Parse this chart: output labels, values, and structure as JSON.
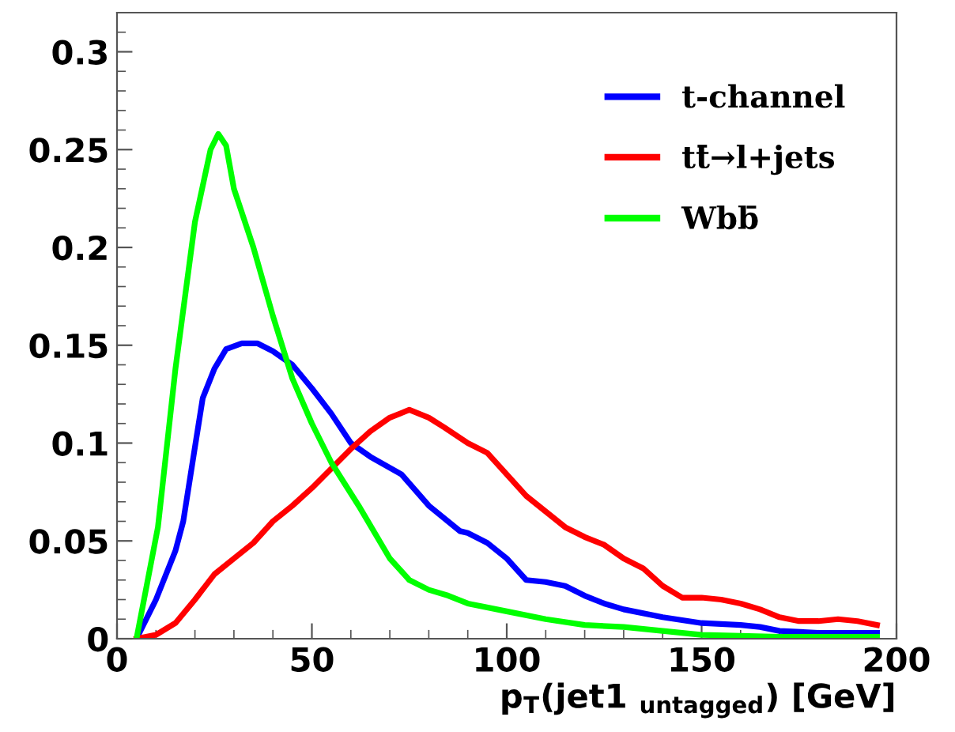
{
  "chart_data": {
    "type": "line",
    "xlabel": "p$_{T}$(jet1 $_{untagged}$) [GeV]",
    "xlim": [
      0,
      200
    ],
    "ylim": [
      0,
      0.32
    ],
    "xticks": [
      0,
      50,
      100,
      150,
      200
    ],
    "yticks": [
      0,
      0.05,
      0.1,
      0.15,
      0.2,
      0.25,
      0.3
    ],
    "grid": false,
    "legend": "top right",
    "marker": "none",
    "line_style": "solid",
    "series": [
      {
        "name": "t-channel",
        "color": "#0000ff",
        "x": [
          5,
          10,
          15,
          17,
          20,
          22,
          25,
          28,
          32,
          36,
          40,
          45,
          50,
          55,
          60,
          65,
          73,
          80,
          88,
          90,
          95,
          100,
          105,
          110,
          115,
          120,
          125,
          130,
          140,
          150,
          160,
          165,
          170,
          180,
          195
        ],
        "values": [
          0,
          0.02,
          0.045,
          0.06,
          0.098,
          0.123,
          0.138,
          0.148,
          0.151,
          0.151,
          0.147,
          0.14,
          0.128,
          0.115,
          0.1,
          0.093,
          0.084,
          0.068,
          0.055,
          0.054,
          0.049,
          0.041,
          0.03,
          0.029,
          0.027,
          0.022,
          0.018,
          0.015,
          0.011,
          0.008,
          0.007,
          0.006,
          0.004,
          0.003,
          0.003
        ]
      },
      {
        "name": "tt̄→l+jets",
        "color": "#ff0000",
        "x": [
          5,
          10,
          15,
          20,
          25,
          30,
          35,
          40,
          45,
          50,
          55,
          60,
          65,
          70,
          75,
          80,
          84,
          90,
          95,
          100,
          105,
          110,
          115,
          120,
          125,
          130,
          135,
          140,
          145,
          150,
          155,
          160,
          165,
          170,
          175,
          180,
          185,
          190,
          195
        ],
        "values": [
          0,
          0.002,
          0.008,
          0.02,
          0.033,
          0.041,
          0.049,
          0.06,
          0.068,
          0.077,
          0.087,
          0.097,
          0.106,
          0.113,
          0.117,
          0.113,
          0.108,
          0.1,
          0.095,
          0.084,
          0.073,
          0.065,
          0.057,
          0.052,
          0.048,
          0.041,
          0.036,
          0.027,
          0.021,
          0.021,
          0.02,
          0.018,
          0.015,
          0.011,
          0.009,
          0.009,
          0.01,
          0.009,
          0.007
        ]
      },
      {
        "name": "Wbb̄",
        "color": "#00ff00",
        "x": [
          5,
          10.5,
          15,
          20,
          24,
          26,
          28,
          30,
          35,
          40,
          45,
          50,
          55,
          62,
          70,
          75,
          80,
          85,
          90,
          100,
          110,
          120,
          130,
          140,
          150,
          170,
          195
        ],
        "values": [
          0,
          0.057,
          0.138,
          0.213,
          0.25,
          0.258,
          0.252,
          0.23,
          0.2,
          0.165,
          0.133,
          0.11,
          0.09,
          0.068,
          0.041,
          0.03,
          0.025,
          0.022,
          0.018,
          0.014,
          0.01,
          0.007,
          0.006,
          0.004,
          0.002,
          0.001,
          0.001
        ]
      }
    ]
  }
}
